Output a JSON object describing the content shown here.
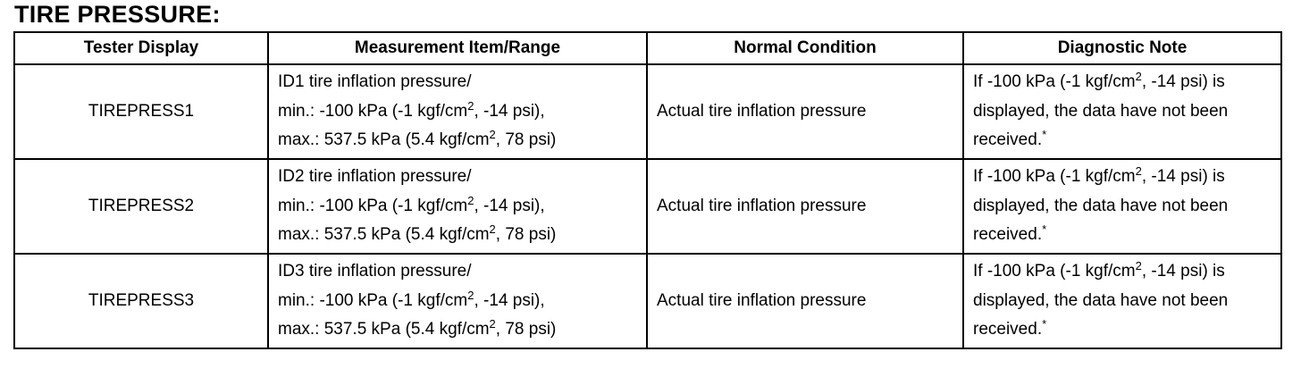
{
  "title": "TIRE PRESSURE:",
  "table": {
    "header": [
      "Tester Display",
      "Measurement Item/Range",
      "Normal Condition",
      "Diagnostic Note"
    ],
    "rows": [
      [
        [
          [
            "TIREPRESS1"
          ]
        ],
        [
          [
            "ID1 tire inflation pressure/"
          ],
          [
            "min.: -100 kPa (-1 kgf/cm",
            "2",
            ", -14 psi),"
          ],
          [
            "max.: 537.5 kPa (5.4 kgf/cm",
            "2",
            ", 78 psi)"
          ]
        ],
        [
          [
            "Actual tire inflation pressure"
          ]
        ],
        [
          [
            "If -100 kPa (-1 kgf/cm",
            "2",
            ", -14 psi) is"
          ],
          [
            "displayed, the data have not been"
          ],
          [
            "received.",
            "*"
          ]
        ]
      ],
      [
        [
          [
            "TIREPRESS2"
          ]
        ],
        [
          [
            "ID2 tire inflation pressure/"
          ],
          [
            "min.: -100 kPa (-1 kgf/cm",
            "2",
            ", -14 psi),"
          ],
          [
            "max.: 537.5 kPa (5.4 kgf/cm",
            "2",
            ", 78 psi)"
          ]
        ],
        [
          [
            "Actual tire inflation pressure"
          ]
        ],
        [
          [
            "If -100 kPa (-1 kgf/cm",
            "2",
            ", -14 psi) is"
          ],
          [
            "displayed, the data have not been"
          ],
          [
            "received.",
            "*"
          ]
        ]
      ],
      [
        [
          [
            "TIREPRESS3"
          ]
        ],
        [
          [
            "ID3 tire inflation pressure/"
          ],
          [
            "min.: -100 kPa (-1 kgf/cm",
            "2",
            ", -14 psi),"
          ],
          [
            "max.: 537.5 kPa (5.4 kgf/cm",
            "2",
            ", 78 psi)"
          ]
        ],
        [
          [
            "Actual tire inflation pressure"
          ]
        ],
        [
          [
            "If -100 kPa (-1 kgf/cm",
            "2",
            ", -14 psi) is"
          ],
          [
            "displayed, the data have not been"
          ],
          [
            "received.",
            "*"
          ]
        ]
      ]
    ]
  }
}
